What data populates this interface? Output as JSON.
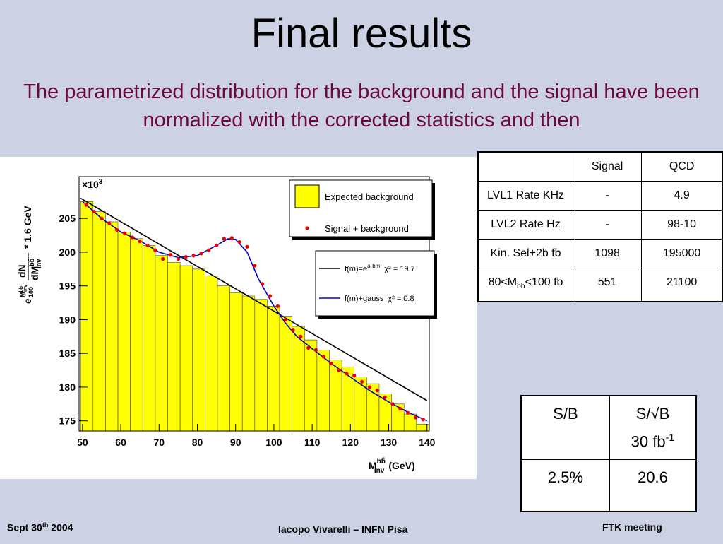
{
  "header": {
    "title": "Final results",
    "subtitle": "The parametrized distribution for the background and the signal have been normalized with the corrected statistics and then"
  },
  "chart_data": {
    "type": "histogram",
    "scale_prefix": "×10",
    "scale_exponent": "3",
    "x_label": {
      "main": "M",
      "sup": "bb̄",
      "sub": "inv",
      "unit": "(GeV)"
    },
    "y_label": {
      "exp_base": "e",
      "exp_num": "M",
      "exp_num_sup": "bb̄",
      "exp_num_sub": "inv",
      "exp_den": "100",
      "num": "dN",
      "den": "dM",
      "den_sup": "bb̄",
      "den_sub": "inv",
      "tail": "* 1.6 GeV"
    },
    "xlim": [
      49.1,
      140.6
    ],
    "ylim": [
      173.5,
      211.2
    ],
    "xticks": [
      50,
      60,
      70,
      80,
      90,
      100,
      110,
      120,
      130,
      140
    ],
    "yticks": [
      175,
      180,
      185,
      190,
      195,
      200,
      205
    ],
    "name": "Expected background",
    "color": "#ffff00",
    "bins": [
      49.5,
      52.75,
      56,
      59.25,
      62.5,
      65.75,
      69,
      72.25,
      75.5,
      78.75,
      82,
      85.25,
      88.5,
      91.75,
      95,
      98.25,
      101.5,
      104.75,
      108,
      111.25,
      114.5,
      117.75,
      121,
      124.25,
      127.5,
      130.75,
      134,
      137.25,
      140.5
    ],
    "values": [
      207.5,
      206,
      204.5,
      203,
      202,
      201,
      199.5,
      198.5,
      198,
      197.5,
      196.5,
      195,
      194,
      193.5,
      193,
      192,
      190.5,
      189,
      187,
      185.5,
      184,
      183,
      181.5,
      180.5,
      179,
      177.5,
      176,
      174.5
    ],
    "points": {
      "name": "Signal + background",
      "color": "#ee0000",
      "x": [
        51,
        53,
        55,
        57,
        59,
        61,
        63,
        65,
        67,
        69,
        71,
        73,
        75,
        77,
        79,
        81,
        83,
        85,
        87,
        89,
        91,
        93,
        95,
        97,
        99,
        101,
        103,
        105,
        107,
        109,
        111,
        113,
        115,
        117,
        119,
        121,
        123,
        125,
        127,
        129,
        131,
        133,
        135,
        137,
        139
      ],
      "values": [
        207.0,
        206.0,
        205.0,
        204.3,
        203.3,
        202.8,
        202.2,
        201.6,
        201.0,
        200.3,
        199.0,
        199.6,
        199.0,
        199.3,
        199.5,
        199.8,
        200.3,
        201.0,
        202.0,
        202.1,
        201.5,
        200.8,
        198.0,
        195.3,
        193.5,
        192.0,
        190.0,
        188.5,
        187.5,
        185.8,
        185.5,
        184.5,
        183.5,
        182.5,
        182.0,
        181.7,
        180.8,
        180.0,
        179.5,
        178.5,
        177.5,
        176.8,
        176.2,
        175.5,
        175.2
      ]
    },
    "lines": [
      {
        "name": "f(m)=e",
        "sup": "a-bm",
        "chi": "χ² = 19.7",
        "color": "#000000",
        "x": [
          49.5,
          140
        ],
        "values": [
          208.0,
          178.0
        ]
      },
      {
        "name": "f(m)+gauss",
        "chi": "χ² = 0.8",
        "color": "#0000cc",
        "x": [
          50,
          55,
          60,
          65,
          70,
          75,
          80,
          85,
          88,
          90,
          93,
          96,
          100,
          103,
          106,
          110,
          115,
          120,
          125,
          130,
          135,
          140
        ],
        "values": [
          207.5,
          205,
          203,
          201.7,
          200,
          199.2,
          199.5,
          201,
          202,
          201.9,
          200,
          196,
          192,
          189.5,
          187.5,
          185.7,
          183.5,
          181.5,
          179.5,
          177.8,
          176.3,
          175
        ]
      }
    ]
  },
  "table1": {
    "header": [
      "Signal",
      "QCD"
    ],
    "rows": [
      {
        "label": [
          "LVL1 Rate KHz"
        ],
        "cells": [
          "-",
          "4.9"
        ]
      },
      {
        "label": [
          "LVL2 Rate Hz"
        ],
        "cells": [
          "-",
          "98-10"
        ]
      },
      {
        "label": [
          "Kin. Sel+2b fb"
        ],
        "cells": [
          "1098",
          "195000"
        ]
      },
      {
        "label": [
          "80<M",
          "bb",
          "<100 fb"
        ],
        "cells": [
          "551",
          "21100"
        ]
      }
    ]
  },
  "table2": {
    "header": {
      "first": "S/B",
      "second": "S/√B",
      "lumi": "30 fb",
      "lumi_sup": "-1"
    },
    "row": [
      "2.5%",
      "20.6"
    ]
  },
  "footer": {
    "date": "Sept 30",
    "date_sup": "th",
    "year": " 2004",
    "author": "Iacopo Vivarelli – INFN Pisa",
    "meeting": "FTK meeting"
  }
}
